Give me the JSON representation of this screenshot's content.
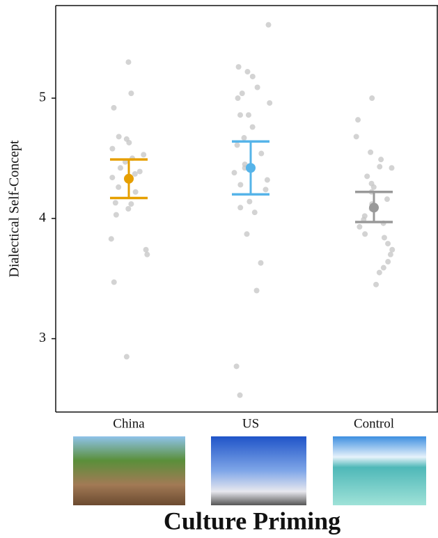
{
  "chart_data": {
    "type": "strip",
    "y_label": "Dialectical Self-Concept",
    "x_label": "Culture Priming",
    "categories": [
      "China",
      "US",
      "Control"
    ],
    "colors": [
      "#e69f00",
      "#56b4e9",
      "#999999"
    ],
    "point_color": "#c8c8c8",
    "points": [
      [
        5.3,
        5.04,
        4.92,
        4.68,
        4.66,
        4.63,
        4.58,
        4.53,
        4.5,
        4.47,
        4.42,
        4.39,
        4.37,
        4.34,
        4.31,
        4.26,
        4.22,
        4.13,
        4.12,
        4.08,
        4.03,
        3.83,
        3.74,
        3.7,
        3.47,
        2.85
      ],
      [
        5.61,
        5.26,
        5.22,
        5.18,
        5.09,
        5.04,
        5.0,
        4.96,
        4.86,
        4.86,
        4.76,
        4.67,
        4.61,
        4.54,
        4.45,
        4.42,
        4.38,
        4.32,
        4.28,
        4.24,
        4.14,
        4.09,
        4.05,
        3.87,
        3.63,
        3.4,
        2.77,
        2.53
      ],
      [
        5.0,
        4.82,
        4.68,
        4.55,
        4.49,
        4.43,
        4.42,
        4.35,
        4.29,
        4.26,
        4.22,
        4.16,
        4.12,
        4.08,
        4.02,
        3.99,
        3.96,
        3.93,
        3.87,
        3.84,
        3.79,
        3.74,
        3.7,
        3.64,
        3.59,
        3.55,
        3.45
      ]
    ],
    "means": [
      4.33,
      4.42,
      4.09
    ],
    "ci_low": [
      4.17,
      4.2,
      3.97
    ],
    "ci_high": [
      4.49,
      4.64,
      4.22
    ],
    "ylim": [
      2.39,
      5.77
    ],
    "yticks": [
      3,
      4,
      5
    ]
  }
}
